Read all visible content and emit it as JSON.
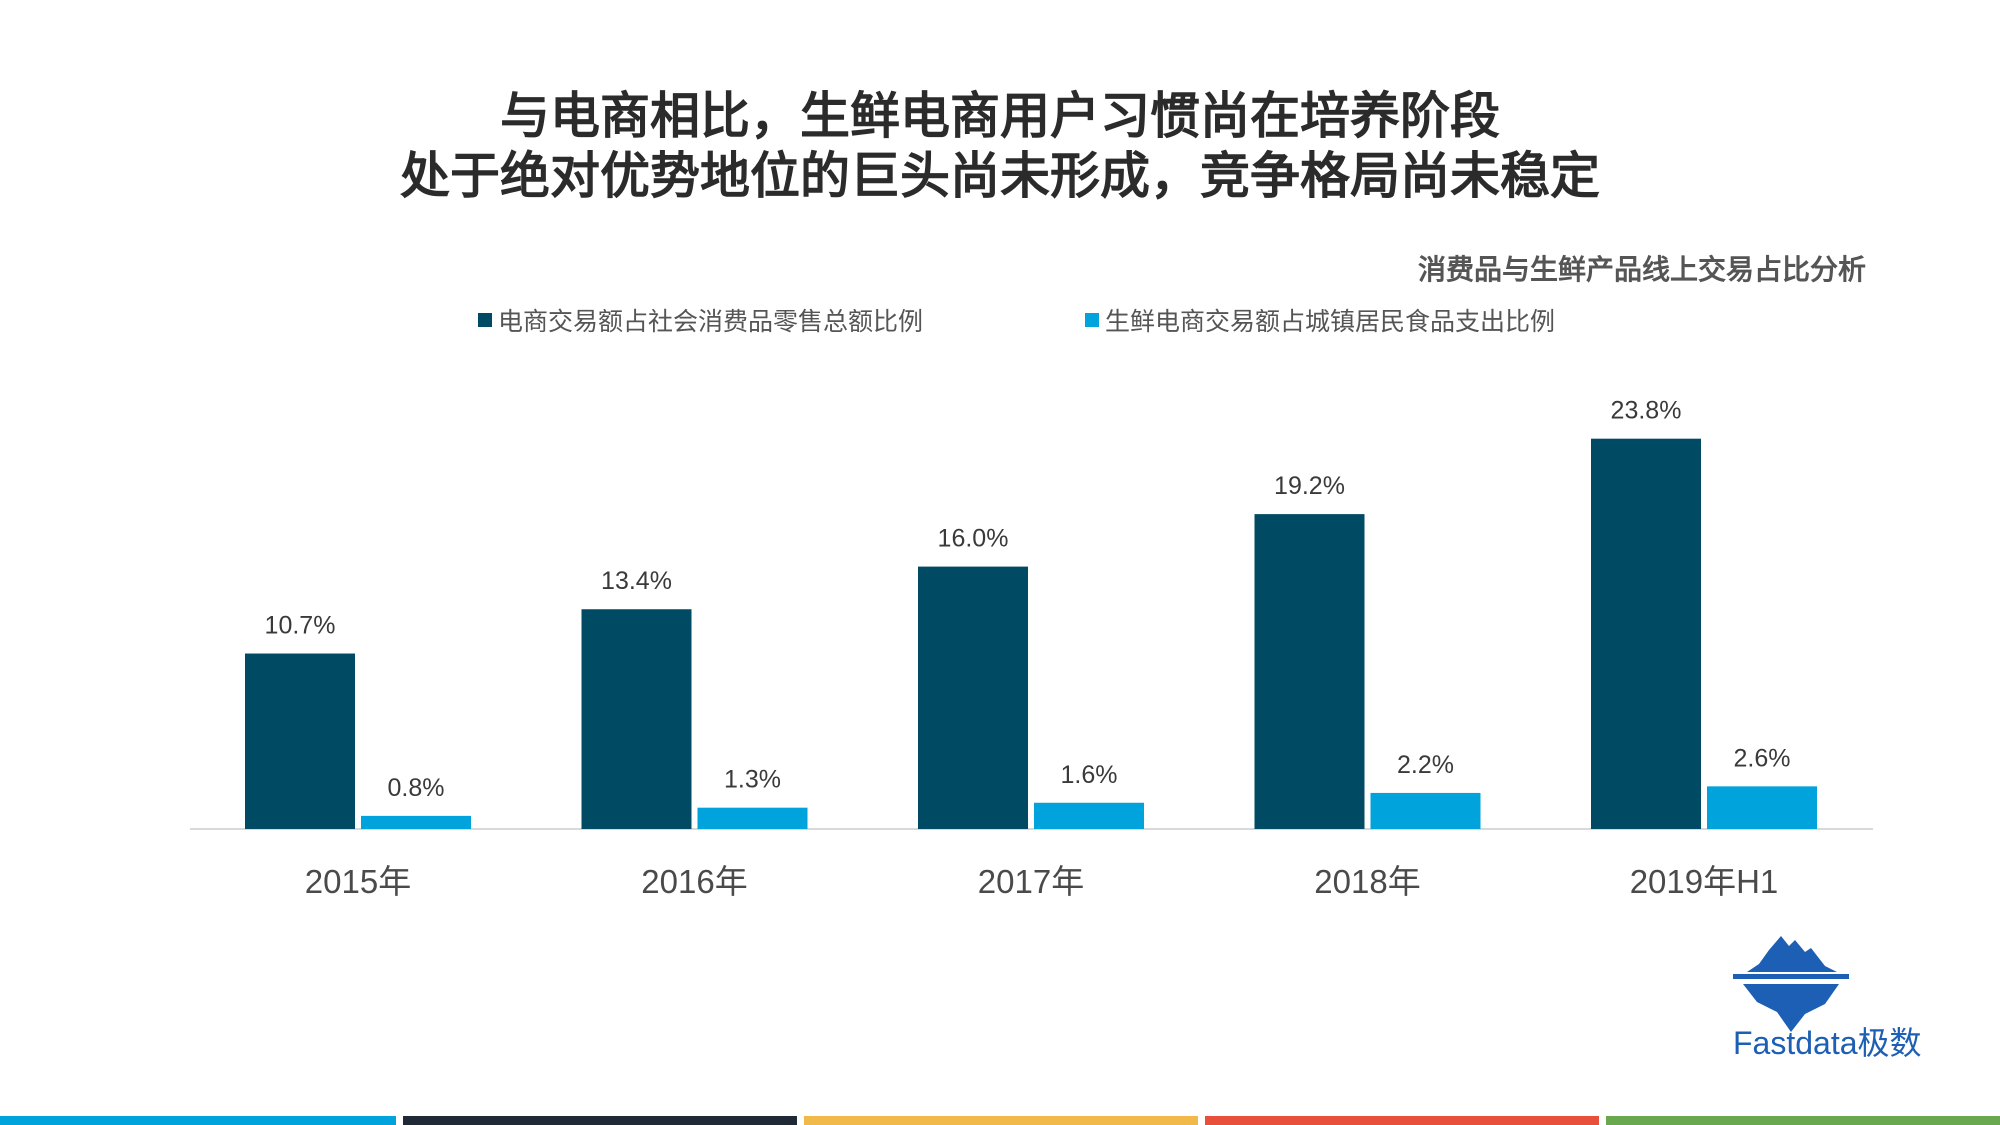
{
  "title": {
    "line1": "与电商相比，生鲜电商用户习惯尚在培养阶段",
    "line2": "处于绝对优势地位的巨头尚未形成，竞争格局尚未稳定"
  },
  "chart_data": {
    "type": "bar",
    "title": "消费品与生鲜产品线上交易占比分析",
    "categories": [
      "2015年",
      "2016年",
      "2017年",
      "2018年",
      "2019年H1"
    ],
    "series": [
      {
        "name": "电商交易额占社会消费品零售总额比例",
        "color": "#004b63",
        "values": [
          10.7,
          13.4,
          16.0,
          19.2,
          23.8
        ],
        "labels": [
          "10.7%",
          "13.4%",
          "16.0%",
          "19.2%",
          "23.8%"
        ]
      },
      {
        "name": "生鲜电商交易额占城镇居民食品支出比例",
        "color": "#00a3dc",
        "values": [
          0.8,
          1.3,
          1.6,
          2.2,
          2.6
        ],
        "labels": [
          "0.8%",
          "1.3%",
          "1.6%",
          "2.2%",
          "2.6%"
        ]
      }
    ],
    "unit": "%",
    "ylim": [
      0,
      24
    ],
    "grid": false,
    "legend_position": "top"
  },
  "logo": {
    "text": "Fastdata极数",
    "icon": "iceberg-icon",
    "color": "#1c5fb4"
  },
  "footer": {
    "colors": [
      "#00a3dc",
      "#1f2a36",
      "#f0b94a",
      "#e8503c",
      "#6aa84f"
    ]
  }
}
